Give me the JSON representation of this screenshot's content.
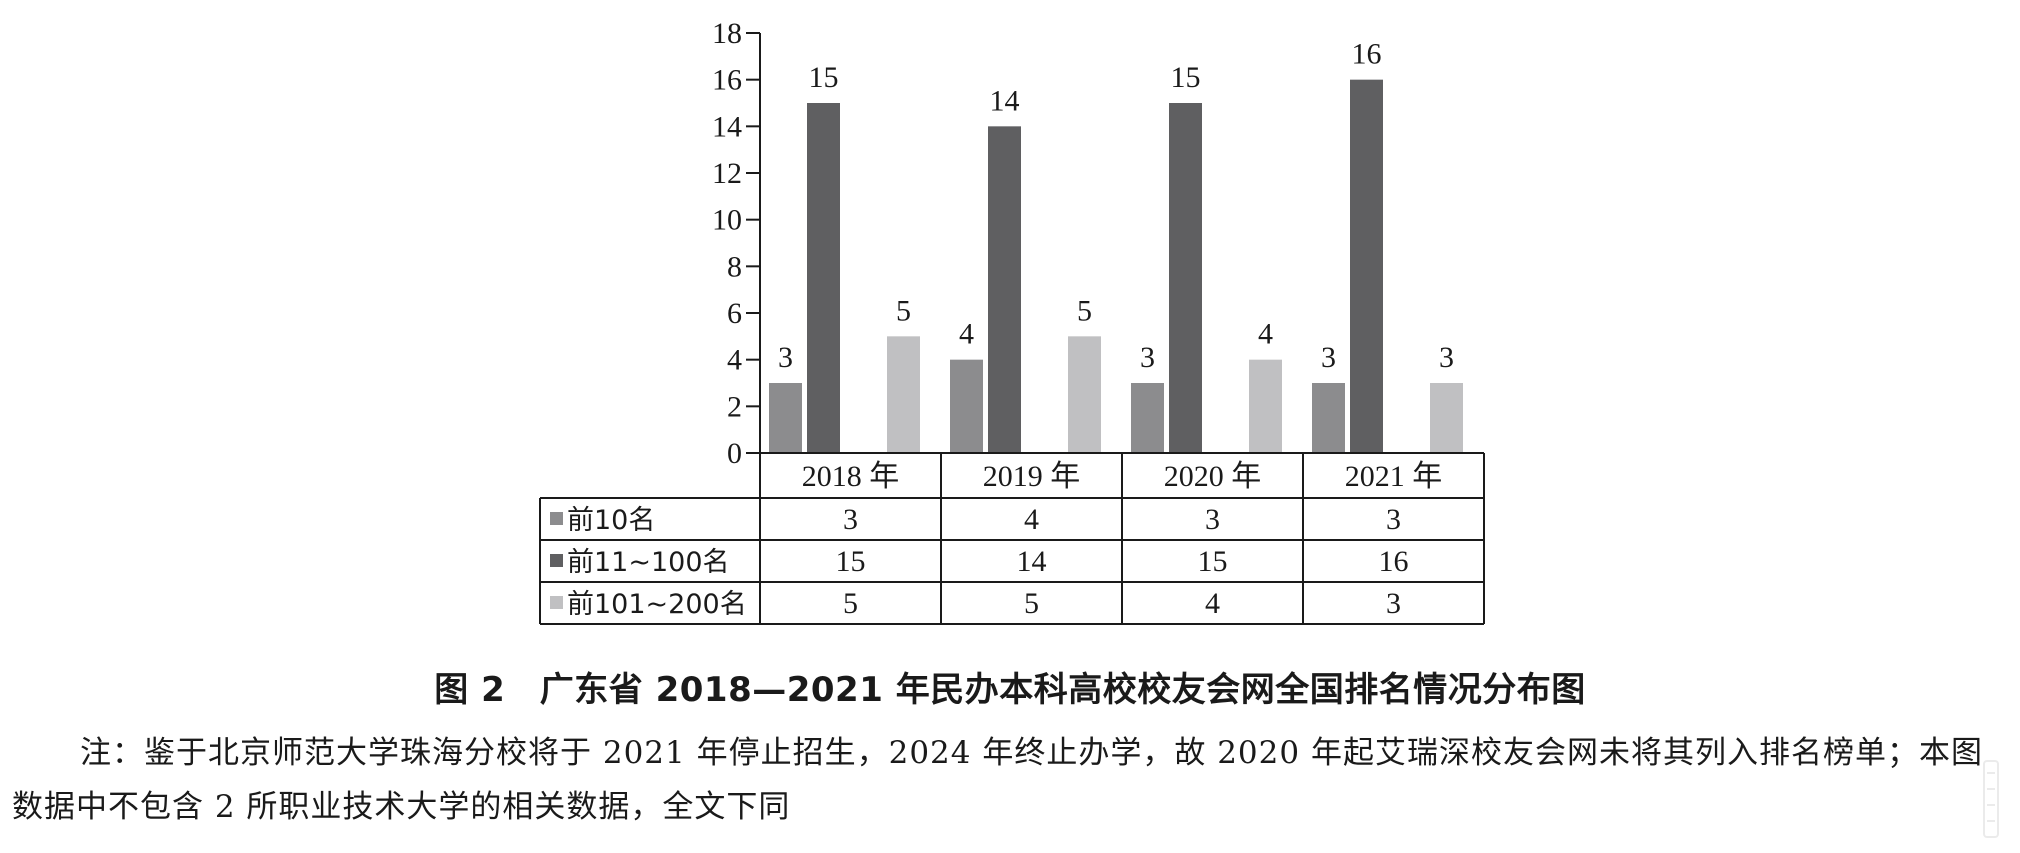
{
  "chart_data": {
    "type": "bar",
    "categories": [
      "2018 年",
      "2019 年",
      "2020 年",
      "2021 年"
    ],
    "series": [
      {
        "name": "前10名",
        "values": [
          3,
          4,
          3,
          3
        ],
        "color": "#8c8c8e"
      },
      {
        "name": "前11~100名",
        "values": [
          15,
          14,
          15,
          16
        ],
        "color": "#5f5f61"
      },
      {
        "name": "前101~200名",
        "values": [
          5,
          5,
          4,
          3
        ],
        "color": "#c0c0c2"
      }
    ],
    "ylim": [
      0,
      18
    ],
    "yticks": [
      "0",
      "2",
      "4",
      "6",
      "8",
      "10",
      "12",
      "14",
      "16",
      "18"
    ],
    "title": "图 2　广东省 2018—2021 年民办本科高校校友会网全国排名情况分布图",
    "legend": "data-table-below",
    "grid": false
  },
  "note": "注：鉴于北京师范大学珠海分校将于 2021 年停止招生，2024 年终止办学，故 2020 年起艾瑞深校友会网未将其列入排名榜单；本图数据中不包含 2 所职业技术大学的相关数据，全文下同"
}
